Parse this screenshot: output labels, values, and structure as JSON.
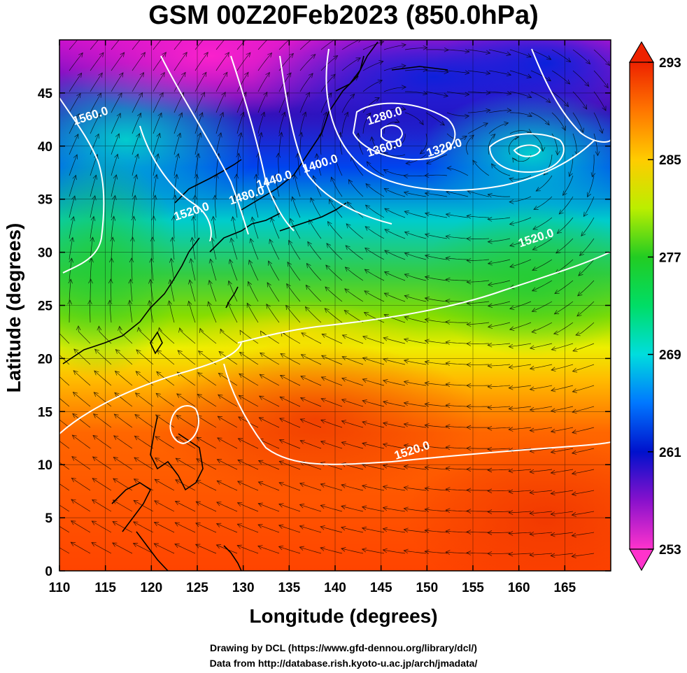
{
  "title": "GSM 00Z20Feb2023 (850.0hPa)",
  "xlabel": "Longitude (degrees)",
  "ylabel": "Latitude  (degrees)",
  "credit_line1": "Drawing by DCL (https://www.gfd-dennou.org/library/dcl/)",
  "credit_line2": "Data from http://database.rish.kyoto-u.ac.jp/arch/jmadata/",
  "chart_data": {
    "type": "heatmap",
    "title": "GSM 00Z20Feb2023 (850.0hPa)",
    "xlabel": "Longitude (degrees)",
    "ylabel": "Latitude  (degrees)",
    "xlim": [
      110,
      170
    ],
    "ylim": [
      0,
      50
    ],
    "x_ticks": [
      "110",
      "115",
      "120",
      "125",
      "130",
      "135",
      "140",
      "145",
      "150",
      "155",
      "160",
      "165"
    ],
    "y_ticks": [
      "0",
      "5",
      "10",
      "15",
      "20",
      "25",
      "30",
      "35",
      "40",
      "45"
    ],
    "grid": true,
    "colorbar": {
      "ticks": [
        "253",
        "261",
        "269",
        "277",
        "285",
        "293"
      ],
      "range": [
        253,
        293
      ],
      "placement": "right",
      "colors": [
        "#ff33cc",
        "#8811cc",
        "#0011cc",
        "#0077ff",
        "#00dddd",
        "#00dd66",
        "#22cc22",
        "#bbee00",
        "#ffcc00",
        "#ff7700",
        "#ee2200"
      ]
    },
    "contour_labels": [
      {
        "text": "1560.0",
        "lon": 113.5,
        "lat": 42.5
      },
      {
        "text": "1520.0",
        "lon": 124.5,
        "lat": 33.5
      },
      {
        "text": "1480.0",
        "lon": 130.5,
        "lat": 35.0
      },
      {
        "text": "1440.0",
        "lon": 133.5,
        "lat": 36.5
      },
      {
        "text": "1400.0",
        "lon": 138.5,
        "lat": 38.0
      },
      {
        "text": "1360.0",
        "lon": 145.5,
        "lat": 39.5
      },
      {
        "text": "1320.0",
        "lon": 152.0,
        "lat": 39.5
      },
      {
        "text": "1280.0",
        "lon": 145.5,
        "lat": 42.5
      },
      {
        "text": "1520.0",
        "lon": 162.0,
        "lat": 31.0
      },
      {
        "text": "1520.0",
        "lon": 148.5,
        "lat": 11.0
      }
    ]
  }
}
